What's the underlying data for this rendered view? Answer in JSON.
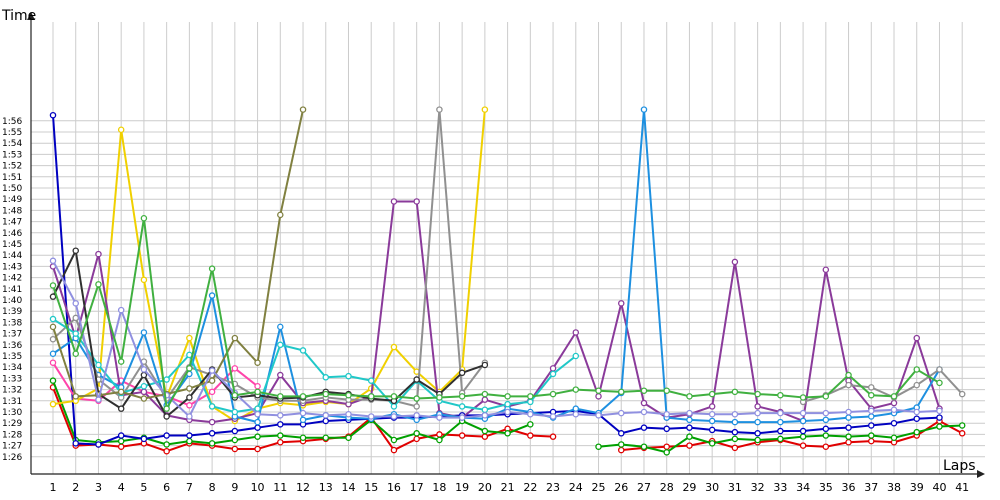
{
  "chart_data": {
    "type": "line",
    "title": "",
    "xlabel": "Laps",
    "ylabel": "Time",
    "x": [
      1,
      2,
      3,
      4,
      5,
      6,
      7,
      8,
      9,
      10,
      11,
      12,
      13,
      14,
      15,
      16,
      17,
      18,
      19,
      20,
      21,
      22,
      23,
      24,
      25,
      26,
      27,
      28,
      29,
      30,
      31,
      32,
      33,
      34,
      35,
      36,
      37,
      38,
      39,
      40,
      41
    ],
    "x_ticks": [
      "1",
      "2",
      "3",
      "4",
      "5",
      "6",
      "7",
      "8",
      "9",
      "10",
      "11",
      "12",
      "13",
      "14",
      "15",
      "16",
      "17",
      "18",
      "19",
      "20",
      "21",
      "22",
      "23",
      "24",
      "25",
      "26",
      "27",
      "28",
      "29",
      "30",
      "31",
      "32",
      "33",
      "34",
      "35",
      "36",
      "37",
      "38",
      "39",
      "40",
      "41"
    ],
    "y_ticks": [
      "1:26",
      "1:27",
      "1:28",
      "1:29",
      "1:30",
      "1:31",
      "1:32",
      "1:33",
      "1:34",
      "1:35",
      "1:36",
      "1:37",
      "1:38",
      "1:39",
      "1:40",
      "1:41",
      "1:42",
      "1:43",
      "1:44",
      "1:45",
      "1:46",
      "1:47",
      "1:48",
      "1:49",
      "1:50",
      "1:51",
      "1:52",
      "1:53",
      "1:54",
      "1:55",
      "1:56"
    ],
    "ylim": [
      85,
      117
    ],
    "grid": true,
    "legend": "none",
    "series": [
      {
        "color": "#e00000",
        "values": [
          92.2,
          87.0,
          87.1,
          86.9,
          87.2,
          86.5,
          87.2,
          87.0,
          86.7,
          86.7,
          87.3,
          87.4,
          87.6,
          87.8,
          89.5,
          86.6,
          87.6,
          88.0,
          87.9,
          87.8,
          88.5,
          87.9,
          87.8,
          null,
          null,
          86.6,
          86.8,
          86.9,
          87.0,
          87.4,
          86.8,
          87.3,
          87.5,
          87.0,
          86.9,
          87.3,
          87.4,
          87.3,
          87.9,
          89.2,
          88.1
        ]
      },
      {
        "color": "#00a000",
        "values": [
          92.8,
          87.5,
          87.3,
          87.4,
          87.7,
          87.1,
          87.4,
          87.2,
          87.5,
          87.8,
          87.9,
          87.7,
          87.7,
          87.7,
          89.3,
          87.5,
          88.1,
          87.5,
          89.2,
          88.3,
          88.1,
          88.9,
          null,
          null,
          86.9,
          87.1,
          86.9,
          86.4,
          87.8,
          87.2,
          87.6,
          87.5,
          87.6,
          87.8,
          87.9,
          87.8,
          87.9,
          87.7,
          88.2,
          88.7,
          88.8
        ]
      },
      {
        "color": "#0000c0",
        "values": [
          116.5,
          87.2,
          87.1,
          87.9,
          87.6,
          87.9,
          87.9,
          88.1,
          88.3,
          88.6,
          88.9,
          88.9,
          89.2,
          89.3,
          89.4,
          89.5,
          89.5,
          89.6,
          89.7,
          89.7,
          89.8,
          89.9,
          90.0,
          90.1,
          89.8,
          88.1,
          88.6,
          88.5,
          88.6,
          88.4,
          88.2,
          88.1,
          88.3,
          88.3,
          88.5,
          88.6,
          88.8,
          89.0,
          89.4,
          89.5,
          null
        ]
      },
      {
        "color": "#ff44aa",
        "values": [
          94.4,
          91.2,
          91.0,
          92.8,
          91.8,
          91.4,
          90.6,
          91.8,
          93.9,
          92.3,
          null,
          null,
          null,
          null,
          null,
          null,
          null,
          null,
          null,
          null,
          null,
          null,
          null,
          null,
          null,
          null,
          null,
          null,
          null,
          null,
          null,
          null,
          null,
          null,
          null,
          null,
          null,
          null,
          null,
          null,
          null
        ]
      },
      {
        "color": "#f0d000",
        "values": [
          90.7,
          91.0,
          92.1,
          115.2,
          101.8,
          91.3,
          96.6,
          90.5,
          89.2,
          90.3,
          90.8,
          90.6,
          90.9,
          90.7,
          92.1,
          95.8,
          93.6,
          91.8,
          93.8,
          117,
          null,
          null,
          null,
          null,
          null,
          null,
          null,
          null,
          null,
          null,
          null,
          null,
          null,
          null,
          null,
          null,
          null,
          null,
          null,
          null,
          null
        ]
      },
      {
        "color": "#8a3a9a",
        "values": [
          103.0,
          96.6,
          104.1,
          91.5,
          91.8,
          89.7,
          89.3,
          89.1,
          89.4,
          89.9,
          93.3,
          90.8,
          91.0,
          90.7,
          91.4,
          108.8,
          108.8,
          89.9,
          89.5,
          91.1,
          90.5,
          91.0,
          93.9,
          97.1,
          91.4,
          99.7,
          90.8,
          89.5,
          89.8,
          90.5,
          103.4,
          90.5,
          90.0,
          89.2,
          102.7,
          92.8,
          90.3,
          90.8,
          96.6,
          90.3,
          null
        ]
      },
      {
        "color": "#1e90e0",
        "values": [
          95.2,
          96.6,
          93.3,
          92.2,
          97.1,
          90.6,
          93.4,
          100.4,
          89.6,
          89.1,
          97.6,
          89.3,
          89.7,
          89.5,
          89.4,
          89.8,
          89.3,
          89.8,
          89.5,
          89.4,
          90.3,
          90.0,
          89.5,
          90.3,
          89.9,
          91.7,
          117,
          89.5,
          89.3,
          89.2,
          89.1,
          89.1,
          89.1,
          89.2,
          89.3,
          89.5,
          89.6,
          89.9,
          90.4,
          93.8,
          null
        ]
      },
      {
        "color": "#909090",
        "values": [
          96.5,
          98.4,
          92.9,
          91.3,
          94.5,
          91.2,
          94.0,
          93.3,
          92.5,
          91.3,
          91.0,
          91.0,
          91.3,
          91.1,
          91.1,
          91.0,
          90.5,
          117,
          91.7,
          94.4,
          null,
          null,
          null,
          null,
          null,
          null,
          null,
          null,
          null,
          null,
          null,
          null,
          null,
          90.9,
          91.5,
          92.4,
          92.2,
          91.3,
          92.4,
          93.8,
          91.6
        ]
      },
      {
        "color": "#20c8c8",
        "values": [
          98.3,
          97.0,
          94.2,
          91.7,
          92.3,
          92.9,
          95.1,
          90.5,
          90.0,
          90.3,
          96.0,
          95.5,
          93.1,
          93.2,
          92.8,
          90.5,
          92.8,
          91.0,
          90.5,
          90.2,
          90.7,
          90.9,
          93.4,
          95.0,
          null,
          null,
          null,
          null,
          null,
          null,
          null,
          null,
          null,
          null,
          null,
          null,
          null,
          null,
          null,
          null,
          null
        ]
      },
      {
        "color": "#303030",
        "values": [
          100.3,
          104.4,
          91.6,
          90.3,
          93.3,
          89.6,
          91.3,
          93.8,
          91.3,
          91.5,
          91.2,
          91.3,
          91.8,
          91.6,
          91.2,
          91.0,
          92.9,
          91.6,
          93.5,
          94.2,
          null,
          null,
          null,
          null,
          null,
          null,
          null,
          null,
          null,
          null,
          null,
          null,
          null,
          null,
          null,
          null,
          null,
          null,
          null,
          null,
          null
        ]
      },
      {
        "color": "#808040",
        "values": [
          97.6,
          91.4,
          91.5,
          91.8,
          91.2,
          91.6,
          92.1,
          92.8,
          96.6,
          94.4,
          107.6,
          117,
          null,
          null,
          null,
          null,
          null,
          null,
          null,
          null,
          null,
          null,
          null,
          null,
          null,
          null,
          null,
          null,
          null,
          null,
          null,
          null,
          null,
          null,
          null,
          null,
          null,
          null,
          null,
          null,
          null
        ]
      },
      {
        "color": "#9090e0",
        "values": [
          103.5,
          99.7,
          91.1,
          99.1,
          93.8,
          91.5,
          89.6,
          93.7,
          91.7,
          89.8,
          89.7,
          89.9,
          89.7,
          89.8,
          89.6,
          89.6,
          89.7,
          89.5,
          89.5,
          89.7,
          90.0,
          89.8,
          89.6,
          89.8,
          89.7,
          89.9,
          90.0,
          89.8,
          89.9,
          89.8,
          89.8,
          89.9,
          89.9,
          89.9,
          89.9,
          90.0,
          90.1,
          90.2,
          90.0,
          90.1,
          null
        ]
      },
      {
        "color": "#40b040",
        "values": [
          101.3,
          95.2,
          101.4,
          94.5,
          107.3,
          90.3,
          93.9,
          102.8,
          91.5,
          91.8,
          91.4,
          91.4,
          91.6,
          91.5,
          91.4,
          91.4,
          91.2,
          91.3,
          91.4,
          91.6,
          91.4,
          91.4,
          91.6,
          92.0,
          91.9,
          91.8,
          91.9,
          91.9,
          91.4,
          91.6,
          91.8,
          91.6,
          91.5,
          91.3,
          91.4,
          93.3,
          91.5,
          91.4,
          93.8,
          92.6,
          null
        ]
      }
    ]
  }
}
